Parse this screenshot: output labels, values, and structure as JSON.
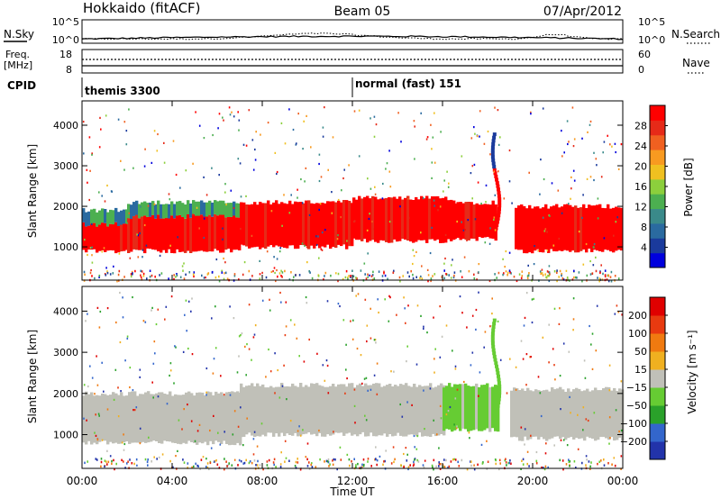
{
  "header": {
    "station": "Hokkaido (fitACF)",
    "beam": "Beam 05",
    "date": "07/Apr/2012"
  },
  "top_panels": {
    "nsky": {
      "label": "N.Sky",
      "tick_top": "10^5",
      "tick_bottom": "10^0"
    },
    "nsearch": {
      "label": "N.Search",
      "tick_top": "10^5",
      "tick_bottom": "10^0"
    },
    "freq": {
      "label_line1": "Freq.",
      "label_line2": "[MHz]",
      "tick_top": "18",
      "tick_bottom": "8"
    },
    "nave": {
      "label": "Nave",
      "tick_top": "60",
      "tick_bottom": "0"
    },
    "cpid": {
      "label": "CPID",
      "mode1": "themis 3300",
      "mode2": "normal (fast) 151"
    }
  },
  "chart_data": [
    {
      "type": "heatmap",
      "name": "power-panel",
      "ylabel": "Slant Range [km]",
      "yticks": [
        "4000",
        "3000",
        "2000",
        "1000"
      ],
      "ytick_values": [
        4000,
        3000,
        2000,
        1000
      ],
      "ylim": [
        180,
        4600
      ],
      "colorbar": {
        "label": "Power [dB]",
        "ticks": [
          "28",
          "24",
          "20",
          "16",
          "12",
          "8",
          "4"
        ],
        "colors": [
          "#0000dd",
          "#1a3a9c",
          "#2a6aa0",
          "#3a8a8a",
          "#4caf50",
          "#8ccf3c",
          "#f0c020",
          "#f89a20",
          "#f06020",
          "#e62a18",
          "#ff0000"
        ]
      },
      "bands": [
        {
          "from_h": 0.0,
          "to_h": 2.0,
          "lower": 900,
          "upper": 1550,
          "level": "red"
        },
        {
          "from_h": 2.0,
          "to_h": 7.0,
          "lower": 900,
          "upper": 1750,
          "level": "red"
        },
        {
          "from_h": 7.0,
          "to_h": 12.0,
          "lower": 1000,
          "upper": 2100,
          "level": "red"
        },
        {
          "from_h": 12.0,
          "to_h": 16.5,
          "lower": 1150,
          "upper": 2200,
          "level": "red"
        },
        {
          "from_h": 16.5,
          "to_h": 18.4,
          "lower": 1200,
          "upper": 2100,
          "level": "red"
        },
        {
          "from_h": 19.2,
          "to_h": 24.0,
          "lower": 900,
          "upper": 2000,
          "level": "red"
        }
      ]
    },
    {
      "type": "heatmap",
      "name": "velocity-panel",
      "ylabel": "Slant Range [km]",
      "yticks": [
        "4000",
        "3000",
        "2000",
        "1000"
      ],
      "ytick_values": [
        4000,
        3000,
        2000,
        1000
      ],
      "ylim": [
        180,
        4600
      ],
      "colorbar": {
        "label": "Velocity [m s⁻¹]",
        "ticks": [
          "200",
          "100",
          "50",
          "15",
          "−15",
          "−50",
          "−100",
          "−200"
        ],
        "colors": [
          "#2233aa",
          "#3366cc",
          "#2aa12a",
          "#66cc33",
          "#c0c0b8",
          "#f0b020",
          "#f07a10",
          "#e83a10",
          "#e00000"
        ]
      },
      "bands": [
        {
          "from_h": 0.0,
          "to_h": 7.0,
          "lower": 800,
          "upper": 2000,
          "level": "grey"
        },
        {
          "from_h": 7.0,
          "to_h": 16.0,
          "lower": 1000,
          "upper": 2200,
          "level": "grey"
        },
        {
          "from_h": 16.0,
          "to_h": 18.5,
          "lower": 1100,
          "upper": 2200,
          "level": "green"
        },
        {
          "from_h": 19.0,
          "to_h": 24.0,
          "lower": 900,
          "upper": 2100,
          "level": "grey"
        }
      ]
    }
  ],
  "xaxis": {
    "label": "Time UT",
    "ticks": [
      "00:00",
      "04:00",
      "08:00",
      "12:00",
      "16:00",
      "20:00",
      "00:00"
    ],
    "tick_hours": [
      0,
      4,
      8,
      12,
      16,
      20,
      24
    ]
  }
}
